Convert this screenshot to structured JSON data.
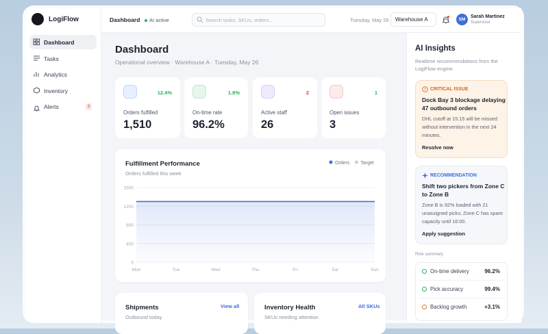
{
  "brand": "LogiFlow",
  "nav": [
    {
      "label": "Dashboard"
    },
    {
      "label": "Tasks"
    },
    {
      "label": "Analytics"
    },
    {
      "label": "Inventory"
    },
    {
      "label": "Alerts",
      "badge": 3
    }
  ],
  "topbar": {
    "page": "Dashboard",
    "status": "AI active",
    "search": "Search tasks, SKUs, orders...",
    "date": "Tuesday, May 26",
    "warehouse": "Warehouse A",
    "user": {
      "initials": "SM",
      "name": "Sarah Martinez",
      "role": "Supervisor"
    }
  },
  "header": {
    "title": "Dashboard",
    "subtitle": "Operational overview · Warehouse A · Tuesday, May 26"
  },
  "kpis": [
    {
      "label": "Orders fulfilled",
      "value": "1,510",
      "change": "12.4%"
    },
    {
      "label": "On-time rate",
      "value": "96.2%",
      "change": "1.8%"
    },
    {
      "label": "Active staff",
      "value": "26",
      "change": "2"
    },
    {
      "label": "Open issues",
      "value": "3",
      "change": "1"
    }
  ],
  "chart_data": {
    "type": "line",
    "title": "Fulfillment Performance",
    "subtitle": "Orders fulfilled this week",
    "categories": [
      "Mon",
      "Tue",
      "Wed",
      "Thu",
      "Fri",
      "Sat",
      "Sun"
    ],
    "series": [
      {
        "name": "Orders",
        "color": "#3d6fd6",
        "values": [
          1300,
          1300,
          1300,
          1300,
          1300,
          1300,
          1300
        ]
      },
      {
        "name": "Target",
        "color": "#c9ced8",
        "values": [
          null,
          null,
          null,
          null,
          null,
          null,
          null
        ]
      }
    ],
    "ylim": [
      0,
      1600
    ],
    "yticks": [
      0,
      400,
      800,
      1200,
      1600
    ],
    "grid": true
  },
  "cards": [
    {
      "title": "Shipments",
      "subtitle": "Outbound today",
      "link": "View all"
    },
    {
      "title": "Inventory Health",
      "subtitle": "SKUs needing attention",
      "link": "All SKUs"
    }
  ],
  "insights": {
    "title": "AI Insights",
    "subtitle": "Realtime recommendations from the LogiFlow engine.",
    "critical": {
      "tag": "CRITICAL ISSUE",
      "title": "Dock Bay 3 blockage delaying 47 outbound orders",
      "body": "DHL cutoff at 15:15 will be missed without intervention in the next 24 minutes.",
      "action": "Resolve now"
    },
    "recommendation": {
      "tag": "RECOMMENDATION",
      "title": "Shift two pickers from Zone C to Zone B",
      "body": "Zone B is 92% loaded with 21 unassigned picks; Zone C has spare capacity until 16:00.",
      "action": "Apply suggestion"
    },
    "risk": {
      "title": "Risk summary",
      "items": [
        {
          "label": "On-time delivery",
          "value": "96.2%"
        },
        {
          "label": "Pick accuracy",
          "value": "99.4%"
        },
        {
          "label": "Backlog growth",
          "value": "+3.1%"
        }
      ]
    }
  }
}
